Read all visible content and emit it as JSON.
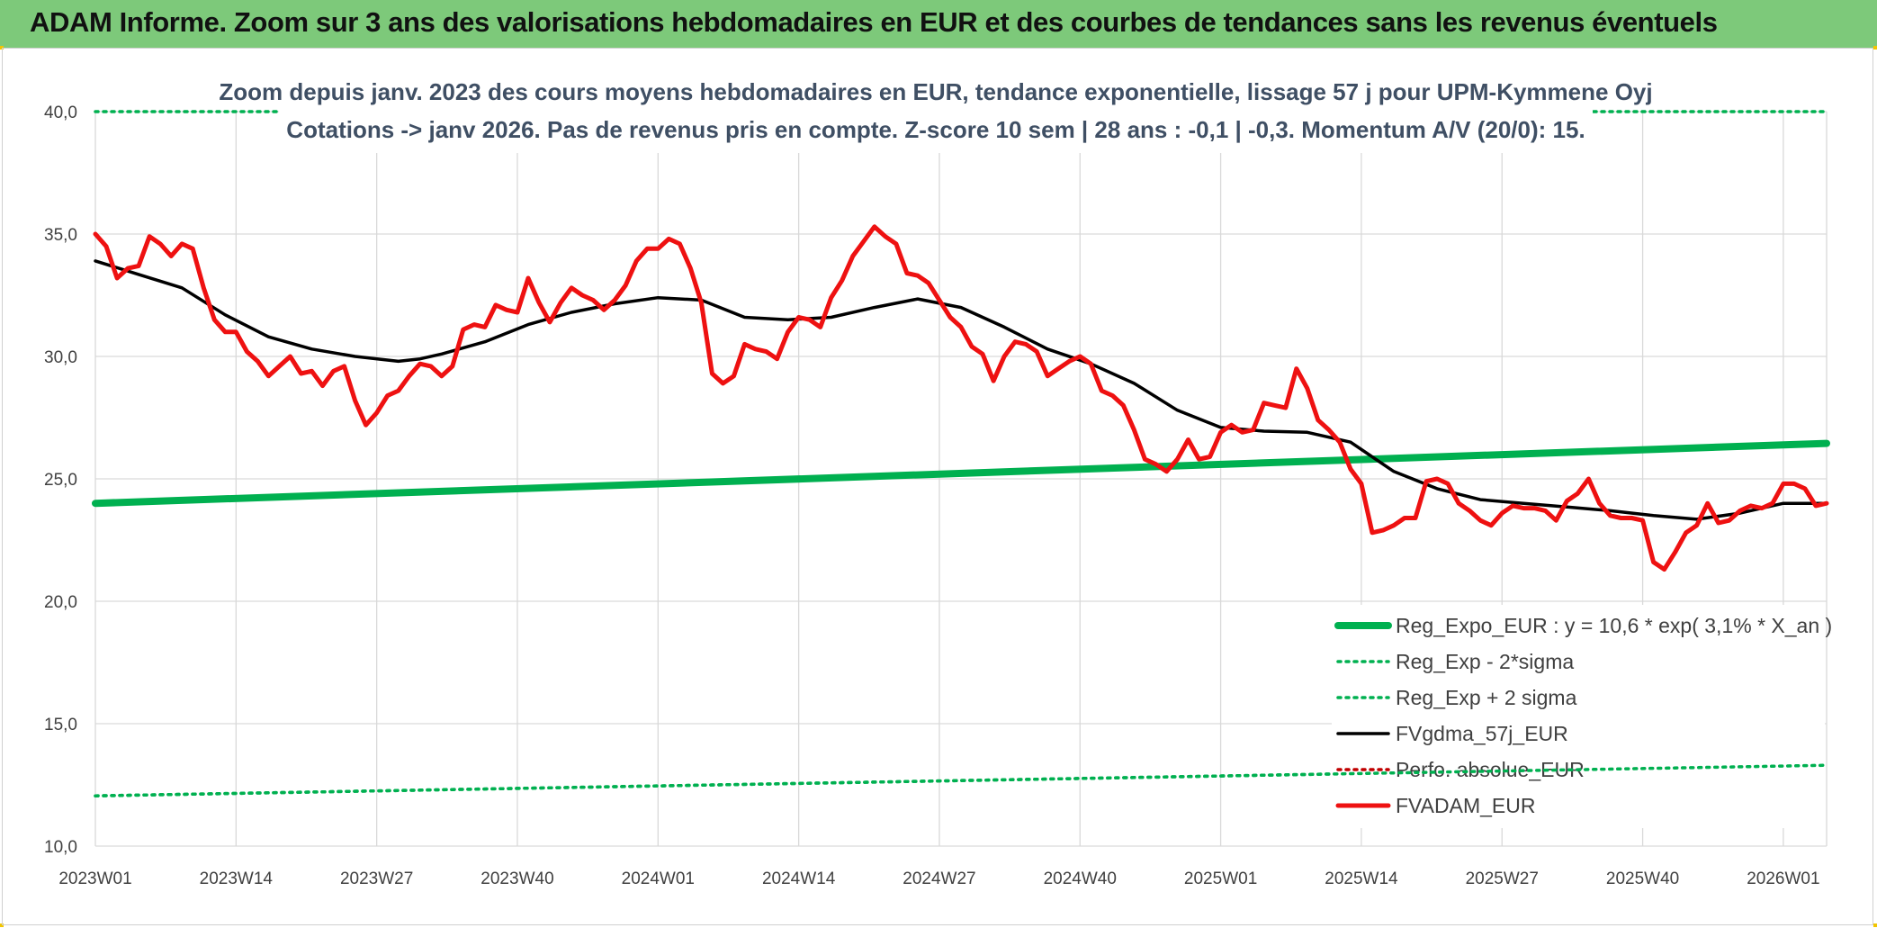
{
  "header": {
    "title": "ADAM Informe. Zoom sur 3 ans des valorisations hebdomadaires en EUR et des courbes de tendances sans les revenus éventuels"
  },
  "colors": {
    "banner": "#7dc97a",
    "reg_expo": "#00b050",
    "sigma": "#00b050",
    "fvgdma": "#000000",
    "perfo": "#c00000",
    "fvadam": "#ee1111",
    "grid": "#d9d9d9"
  },
  "chart_data": {
    "type": "line",
    "title_line1": "Zoom depuis janv. 2023 des cours moyens hebdomadaires en EUR, tendance exponentielle, lissage 57 j pour UPM-Kymmene Oyj",
    "title_line2": "Cotations -> janv 2026. Pas de revenus pris en compte. Z-score 10 sem | 28 ans : -0,1 | -0,3. Momentum A/V (20/0): 15.",
    "x_ticks": [
      "2023W01",
      "2023W14",
      "2023W27",
      "2023W40",
      "2024W01",
      "2024W14",
      "2024W27",
      "2024W40",
      "2025W01",
      "2025W14",
      "2025W27",
      "2025W40",
      "2026W01"
    ],
    "y_ticks": [
      "10,0",
      "15,0",
      "20,0",
      "25,0",
      "30,0",
      "35,0",
      "40,0"
    ],
    "ylim": [
      10,
      40
    ],
    "x_range_weeks": [
      0,
      160
    ],
    "grid": true,
    "legend_position": "bottom-right",
    "series": [
      {
        "name": "Reg_Expo_EUR : y = 10,6 * exp( 3,1% *  X_an )",
        "style": "solid-thick",
        "color": "#00b050",
        "x": [
          0,
          160
        ],
        "values": [
          24.0,
          26.45
        ]
      },
      {
        "name": "Reg_Exp - 2*sigma",
        "style": "dotted",
        "color": "#00b050",
        "x": [
          0,
          160
        ],
        "values": [
          12.05,
          13.3
        ]
      },
      {
        "name": "Reg_Exp + 2 sigma",
        "style": "dotted",
        "color": "#00b050",
        "x": [
          0,
          160
        ],
        "values": [
          40.0,
          40.0
        ]
      },
      {
        "name": "FVgdma_57j_EUR",
        "style": "solid",
        "color": "#000000",
        "x": [
          0,
          4,
          8,
          12,
          16,
          20,
          24,
          28,
          30,
          32,
          36,
          40,
          44,
          48,
          52,
          56,
          60,
          64,
          68,
          72,
          76,
          80,
          84,
          88,
          92,
          96,
          100,
          104,
          108,
          112,
          116,
          120,
          124,
          128,
          132,
          136,
          140,
          144,
          148,
          152,
          156,
          160
        ],
        "values": [
          33.9,
          33.35,
          32.8,
          31.7,
          30.8,
          30.3,
          30.0,
          29.8,
          29.9,
          30.1,
          30.6,
          31.3,
          31.8,
          32.15,
          32.4,
          32.3,
          31.6,
          31.5,
          31.6,
          32.0,
          32.35,
          32.0,
          31.2,
          30.3,
          29.7,
          28.9,
          27.8,
          27.1,
          26.95,
          26.9,
          26.5,
          25.3,
          24.6,
          24.15,
          24.0,
          23.85,
          23.7,
          23.5,
          23.35,
          23.6,
          24.0,
          24.0
        ]
      },
      {
        "name": "Perfo. absolue_EUR",
        "style": "dotted",
        "color": "#c00000",
        "x": [],
        "values": []
      },
      {
        "name": "FVADAM_EUR",
        "style": "solid-thick",
        "color": "#ee1111",
        "x": [
          0,
          1,
          2,
          3,
          4,
          5,
          6,
          7,
          8,
          9,
          10,
          11,
          12,
          13,
          14,
          15,
          16,
          17,
          18,
          19,
          20,
          21,
          22,
          23,
          24,
          25,
          26,
          27,
          28,
          29,
          30,
          31,
          32,
          33,
          34,
          35,
          36,
          37,
          38,
          39,
          40,
          41,
          42,
          43,
          44,
          45,
          46,
          47,
          48,
          49,
          50,
          51,
          52,
          53,
          54,
          55,
          56,
          57,
          58,
          59,
          60,
          61,
          62,
          63,
          64,
          65,
          66,
          67,
          68,
          69,
          70,
          71,
          72,
          73,
          74,
          75,
          76,
          77,
          78,
          79,
          80,
          81,
          82,
          83,
          84,
          85,
          86,
          87,
          88,
          89,
          90,
          91,
          92,
          93,
          94,
          95,
          96,
          97,
          98,
          99,
          100,
          101,
          102,
          103,
          104,
          105,
          106,
          107,
          108,
          109,
          110,
          111,
          112,
          113,
          114,
          115,
          116,
          117,
          118,
          119,
          120,
          121,
          122,
          123,
          124,
          125,
          126,
          127,
          128,
          129,
          130,
          131,
          132,
          133,
          134,
          135,
          136,
          137,
          138,
          139,
          140,
          141,
          142,
          143,
          144,
          145,
          146,
          147,
          148,
          149,
          150,
          151,
          152,
          153,
          154,
          155,
          156,
          157,
          158,
          159,
          160
        ],
        "values": [
          35.0,
          34.5,
          33.2,
          33.6,
          33.7,
          34.9,
          34.6,
          34.1,
          34.6,
          34.4,
          32.8,
          31.5,
          31.0,
          31.0,
          30.2,
          29.8,
          29.2,
          29.6,
          30.0,
          29.3,
          29.4,
          28.8,
          29.4,
          29.6,
          28.2,
          27.2,
          27.7,
          28.4,
          28.6,
          29.2,
          29.7,
          29.6,
          29.2,
          29.6,
          31.1,
          31.3,
          31.2,
          32.1,
          31.9,
          31.8,
          33.2,
          32.2,
          31.4,
          32.2,
          32.8,
          32.5,
          32.3,
          31.9,
          32.3,
          32.9,
          33.9,
          34.4,
          34.4,
          34.8,
          34.6,
          33.6,
          32.2,
          29.3,
          28.9,
          29.2,
          30.5,
          30.3,
          30.2,
          29.9,
          31.0,
          31.6,
          31.5,
          31.2,
          32.4,
          33.1,
          34.1,
          34.7,
          35.3,
          34.9,
          34.6,
          33.4,
          33.3,
          33.0,
          32.3,
          31.6,
          31.2,
          30.4,
          30.1,
          29.0,
          30.0,
          30.6,
          30.5,
          30.2,
          29.2,
          29.5,
          29.8,
          30.0,
          29.7,
          28.6,
          28.4,
          28.0,
          27.0,
          25.8,
          25.6,
          25.3,
          25.8,
          26.6,
          25.8,
          25.9,
          26.9,
          27.2,
          26.9,
          27.0,
          28.1,
          28.0,
          27.9,
          29.5,
          28.7,
          27.4,
          27.0,
          26.5,
          25.4,
          24.8,
          22.8,
          22.9,
          23.1,
          23.4,
          23.4,
          24.9,
          25.0,
          24.8,
          24.0,
          23.7,
          23.3,
          23.1,
          23.6,
          23.9,
          23.8,
          23.8,
          23.7,
          23.3,
          24.1,
          24.4,
          25.0,
          24.0,
          23.5,
          23.4,
          23.4,
          23.3,
          21.6,
          21.3,
          22.0,
          22.8,
          23.1,
          24.0,
          23.2,
          23.3,
          23.7,
          23.9,
          23.8,
          24.0,
          24.8,
          24.8,
          24.6,
          23.9,
          24.0
        ]
      }
    ]
  }
}
